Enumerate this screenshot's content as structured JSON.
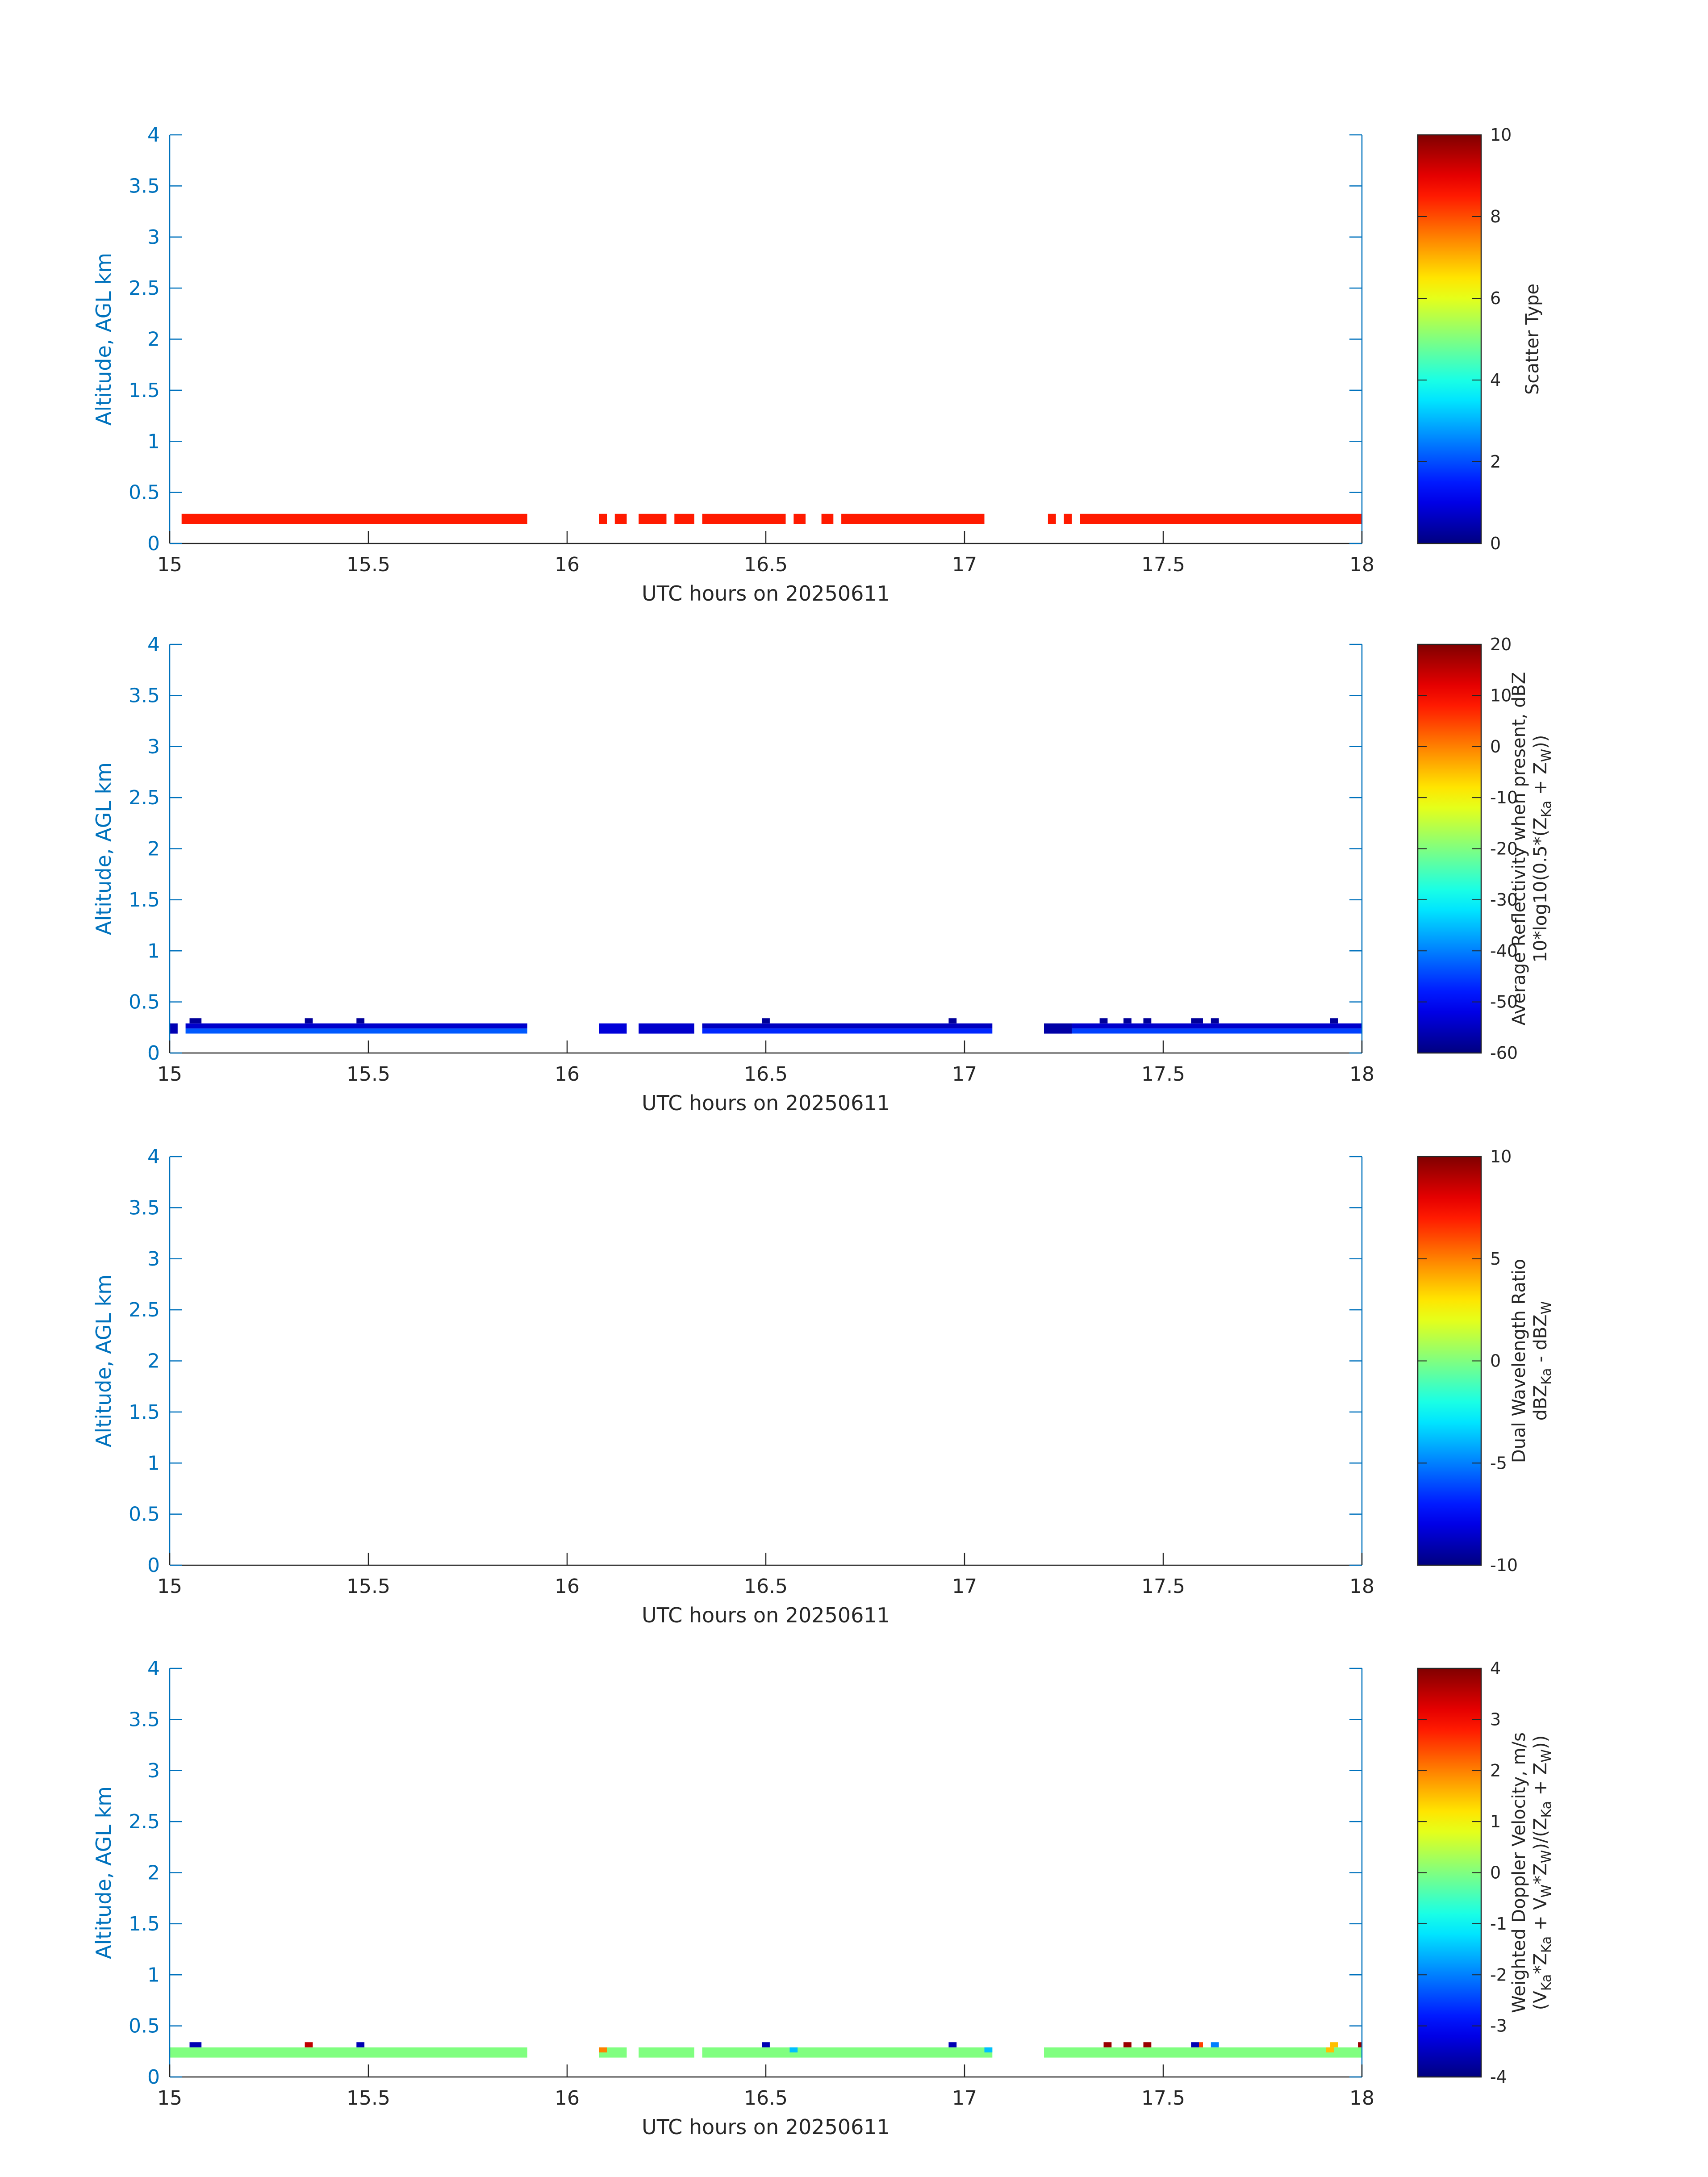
{
  "chart_data": [
    {
      "type": "heatmap",
      "xlabel": "UTC hours on 20250611",
      "ylabel": "Altitude, AGL km",
      "xlim": [
        15,
        18
      ],
      "ylim": [
        0,
        4
      ],
      "x_ticks": [
        "15",
        "15.5",
        "16",
        "16.5",
        "17",
        "17.5",
        "18"
      ],
      "y_ticks": [
        "0",
        "0.5",
        "1",
        "1.5",
        "2",
        "2.5",
        "3",
        "3.5",
        "4"
      ],
      "colorbar": {
        "label_lines": [
          "Scatter Type"
        ],
        "range": [
          0,
          10
        ],
        "ticks": [
          "0",
          "2",
          "4",
          "6",
          "8",
          "10"
        ]
      },
      "segments": [
        {
          "x0": 15.03,
          "x1": 15.9,
          "y0": 0.19,
          "y1": 0.29,
          "value": 8.5
        },
        {
          "x0": 16.08,
          "x1": 16.1,
          "y0": 0.19,
          "y1": 0.29,
          "value": 8.5
        },
        {
          "x0": 16.12,
          "x1": 16.15,
          "y0": 0.19,
          "y1": 0.29,
          "value": 8.5
        },
        {
          "x0": 16.18,
          "x1": 16.25,
          "y0": 0.19,
          "y1": 0.29,
          "value": 8.5
        },
        {
          "x0": 16.27,
          "x1": 16.32,
          "y0": 0.19,
          "y1": 0.29,
          "value": 8.5
        },
        {
          "x0": 16.34,
          "x1": 16.55,
          "y0": 0.19,
          "y1": 0.29,
          "value": 8.5
        },
        {
          "x0": 16.57,
          "x1": 16.6,
          "y0": 0.19,
          "y1": 0.29,
          "value": 8.5
        },
        {
          "x0": 16.64,
          "x1": 16.67,
          "y0": 0.19,
          "y1": 0.29,
          "value": 8.5
        },
        {
          "x0": 16.69,
          "x1": 17.05,
          "y0": 0.19,
          "y1": 0.29,
          "value": 8.5
        },
        {
          "x0": 17.21,
          "x1": 17.23,
          "y0": 0.19,
          "y1": 0.29,
          "value": 8.5
        },
        {
          "x0": 17.25,
          "x1": 17.27,
          "y0": 0.19,
          "y1": 0.29,
          "value": 8.5
        },
        {
          "x0": 17.29,
          "x1": 18.0,
          "y0": 0.19,
          "y1": 0.29,
          "value": 8.5
        }
      ]
    },
    {
      "type": "heatmap",
      "xlabel": "UTC hours on 20250611",
      "ylabel": "Altitude, AGL km",
      "xlim": [
        15,
        18
      ],
      "ylim": [
        0,
        4
      ],
      "x_ticks": [
        "15",
        "15.5",
        "16",
        "16.5",
        "17",
        "17.5",
        "18"
      ],
      "y_ticks": [
        "0",
        "0.5",
        "1",
        "1.5",
        "2",
        "2.5",
        "3",
        "3.5",
        "4"
      ],
      "colorbar": {
        "label_lines": [
          "Average Reflectivity when present, dBZ",
          "10*log10(0.5*(Z_Ka + Z_W))"
        ],
        "range": [
          -60,
          20
        ],
        "ticks": [
          "-60",
          "-50",
          "-40",
          "-30",
          "-20",
          "-10",
          "0",
          "10",
          "20"
        ]
      },
      "segments": [
        {
          "x0": 15.0,
          "x1": 15.02,
          "y0": 0.19,
          "y1": 0.29,
          "value": -56
        },
        {
          "x0": 15.04,
          "x1": 15.9,
          "y0": 0.24,
          "y1": 0.29,
          "value": -54
        },
        {
          "x0": 15.04,
          "x1": 15.9,
          "y0": 0.19,
          "y1": 0.24,
          "value": -43
        },
        {
          "x0": 16.08,
          "x1": 16.15,
          "y0": 0.19,
          "y1": 0.29,
          "value": -53
        },
        {
          "x0": 16.18,
          "x1": 16.32,
          "y0": 0.19,
          "y1": 0.29,
          "value": -54
        },
        {
          "x0": 16.34,
          "x1": 17.07,
          "y0": 0.24,
          "y1": 0.29,
          "value": -55
        },
        {
          "x0": 16.34,
          "x1": 17.07,
          "y0": 0.19,
          "y1": 0.24,
          "value": -47
        },
        {
          "x0": 17.2,
          "x1": 17.27,
          "y0": 0.19,
          "y1": 0.29,
          "value": -57
        },
        {
          "x0": 17.27,
          "x1": 18.0,
          "y0": 0.24,
          "y1": 0.29,
          "value": -54
        },
        {
          "x0": 17.27,
          "x1": 18.0,
          "y0": 0.19,
          "y1": 0.24,
          "value": -45
        },
        {
          "x0": 15.05,
          "x1": 15.08,
          "y0": 0.29,
          "y1": 0.34,
          "value": -58
        },
        {
          "x0": 15.34,
          "x1": 15.36,
          "y0": 0.29,
          "y1": 0.34,
          "value": -58
        },
        {
          "x0": 15.47,
          "x1": 15.49,
          "y0": 0.29,
          "y1": 0.34,
          "value": -58
        },
        {
          "x0": 16.49,
          "x1": 16.51,
          "y0": 0.29,
          "y1": 0.34,
          "value": -58
        },
        {
          "x0": 16.96,
          "x1": 16.98,
          "y0": 0.29,
          "y1": 0.34,
          "value": -58
        },
        {
          "x0": 17.34,
          "x1": 17.36,
          "y0": 0.29,
          "y1": 0.34,
          "value": -58
        },
        {
          "x0": 17.4,
          "x1": 17.42,
          "y0": 0.29,
          "y1": 0.34,
          "value": -58
        },
        {
          "x0": 17.45,
          "x1": 17.47,
          "y0": 0.29,
          "y1": 0.34,
          "value": -58
        },
        {
          "x0": 17.57,
          "x1": 17.6,
          "y0": 0.29,
          "y1": 0.34,
          "value": -58
        },
        {
          "x0": 17.62,
          "x1": 17.64,
          "y0": 0.29,
          "y1": 0.34,
          "value": -58
        },
        {
          "x0": 17.92,
          "x1": 17.94,
          "y0": 0.29,
          "y1": 0.34,
          "value": -58
        }
      ]
    },
    {
      "type": "heatmap",
      "xlabel": "UTC hours on 20250611",
      "ylabel": "Altitude, AGL km",
      "xlim": [
        15,
        18
      ],
      "ylim": [
        0,
        4
      ],
      "x_ticks": [
        "15",
        "15.5",
        "16",
        "16.5",
        "17",
        "17.5",
        "18"
      ],
      "y_ticks": [
        "0",
        "0.5",
        "1",
        "1.5",
        "2",
        "2.5",
        "3",
        "3.5",
        "4"
      ],
      "colorbar": {
        "label_lines": [
          "Dual Wavelength Ratio",
          "dBZ_Ka - dBZ_W"
        ],
        "range": [
          -10,
          10
        ],
        "ticks": [
          "-10",
          "-5",
          "0",
          "5",
          "10"
        ]
      },
      "segments": []
    },
    {
      "type": "heatmap",
      "xlabel": "UTC hours on 20250611",
      "ylabel": "Altitude, AGL km",
      "xlim": [
        15,
        18
      ],
      "ylim": [
        0,
        4
      ],
      "x_ticks": [
        "15",
        "15.5",
        "16",
        "16.5",
        "17",
        "17.5",
        "18"
      ],
      "y_ticks": [
        "0",
        "0.5",
        "1",
        "1.5",
        "2",
        "2.5",
        "3",
        "3.5",
        "4"
      ],
      "colorbar": {
        "label_lines": [
          "Weighted Doppler Velocity, m/s",
          "(V_Ka*Z_Ka + V_W*Z_W)/(Z_Ka + Z_W))"
        ],
        "range": [
          -4,
          4
        ],
        "ticks": [
          "-4",
          "-3",
          "-2",
          "-1",
          "0",
          "1",
          "2",
          "3",
          "4"
        ]
      },
      "segments": [
        {
          "x0": 15.0,
          "x1": 15.9,
          "y0": 0.19,
          "y1": 0.29,
          "value": 0.0
        },
        {
          "x0": 16.08,
          "x1": 16.15,
          "y0": 0.19,
          "y1": 0.29,
          "value": 0.0
        },
        {
          "x0": 16.18,
          "x1": 16.32,
          "y0": 0.19,
          "y1": 0.29,
          "value": 0.0
        },
        {
          "x0": 16.34,
          "x1": 17.07,
          "y0": 0.19,
          "y1": 0.29,
          "value": 0.0
        },
        {
          "x0": 17.2,
          "x1": 18.0,
          "y0": 0.19,
          "y1": 0.29,
          "value": 0.0
        },
        {
          "x0": 16.08,
          "x1": 16.1,
          "y0": 0.24,
          "y1": 0.29,
          "value": 2.0
        },
        {
          "x0": 16.56,
          "x1": 16.58,
          "y0": 0.24,
          "y1": 0.29,
          "value": -1.5
        },
        {
          "x0": 17.05,
          "x1": 17.07,
          "y0": 0.24,
          "y1": 0.29,
          "value": -1.5
        },
        {
          "x0": 17.91,
          "x1": 17.93,
          "y0": 0.24,
          "y1": 0.29,
          "value": 1.5
        },
        {
          "x0": 15.05,
          "x1": 15.08,
          "y0": 0.29,
          "y1": 0.34,
          "value": -3.6
        },
        {
          "x0": 15.34,
          "x1": 15.36,
          "y0": 0.29,
          "y1": 0.34,
          "value": 3.5
        },
        {
          "x0": 15.47,
          "x1": 15.49,
          "y0": 0.29,
          "y1": 0.34,
          "value": -3.6
        },
        {
          "x0": 16.49,
          "x1": 16.51,
          "y0": 0.29,
          "y1": 0.34,
          "value": -3.6
        },
        {
          "x0": 16.96,
          "x1": 16.98,
          "y0": 0.29,
          "y1": 0.34,
          "value": -3.6
        },
        {
          "x0": 17.35,
          "x1": 17.37,
          "y0": 0.29,
          "y1": 0.34,
          "value": 3.8
        },
        {
          "x0": 17.4,
          "x1": 17.42,
          "y0": 0.29,
          "y1": 0.34,
          "value": 3.8
        },
        {
          "x0": 17.45,
          "x1": 17.47,
          "y0": 0.29,
          "y1": 0.34,
          "value": 3.8
        },
        {
          "x0": 17.57,
          "x1": 17.59,
          "y0": 0.29,
          "y1": 0.34,
          "value": -3.6
        },
        {
          "x0": 17.59,
          "x1": 17.6,
          "y0": 0.29,
          "y1": 0.34,
          "value": 2.5
        },
        {
          "x0": 17.62,
          "x1": 17.64,
          "y0": 0.29,
          "y1": 0.34,
          "value": -2.0
        },
        {
          "x0": 17.92,
          "x1": 17.94,
          "y0": 0.29,
          "y1": 0.34,
          "value": 1.5
        },
        {
          "x0": 17.99,
          "x1": 18.0,
          "y0": 0.29,
          "y1": 0.34,
          "value": 3.8
        }
      ]
    }
  ]
}
